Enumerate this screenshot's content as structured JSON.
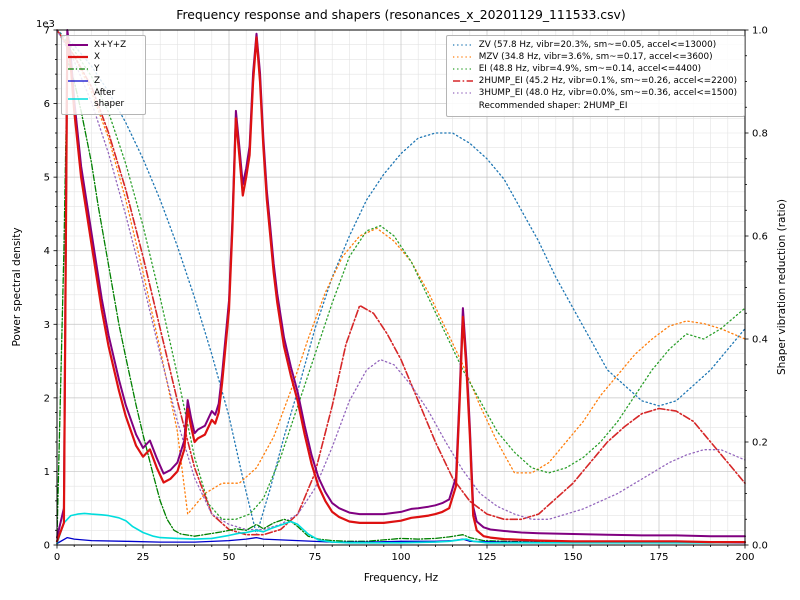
{
  "chart_data": {
    "type": "line",
    "title": "Frequency response and shapers (resonances_x_20201129_111533.csv)",
    "xlabel": "Frequency, Hz",
    "ylabel_left": "Power spectral density",
    "ylabel_right": "Shaper vibration reduction (ratio)",
    "y_left_offset": "1e3",
    "x_range": [
      0,
      200
    ],
    "y_left_range": [
      0,
      7
    ],
    "y_right_range": [
      0,
      1.0
    ],
    "x_ticks": [
      0,
      25,
      50,
      75,
      100,
      125,
      150,
      175,
      200
    ],
    "y_left_ticks": [
      0,
      1,
      2,
      3,
      4,
      5,
      6,
      7
    ],
    "y_right_ticks": [
      0,
      0.2,
      0.4,
      0.6,
      0.8,
      1.0
    ],
    "grid": "both",
    "legend_positions": {
      "psd": "upper left",
      "shapers": "upper right"
    },
    "colors": {
      "grid_major": "#c4c4c4",
      "grid_minor": "#e3e3e3",
      "frame": "#000000"
    },
    "recommended_note": "Recommended shaper: 2HUMP_EI",
    "psd_series": [
      {
        "name": "x-y-z",
        "label": "X+Y+Z",
        "color": "#800080",
        "dash": "solid",
        "width": 2,
        "x": [
          0,
          2,
          3,
          4,
          5,
          7,
          10,
          13,
          15,
          18,
          20,
          23,
          25,
          27,
          29,
          31,
          33,
          35,
          37,
          38,
          39,
          40,
          41,
          43,
          45,
          46,
          47,
          48,
          50,
          51,
          52,
          53,
          54,
          55,
          56,
          57,
          58,
          59,
          60,
          61,
          62,
          63,
          64,
          65,
          66,
          68,
          70,
          72,
          74,
          76,
          78,
          80,
          82,
          85,
          88,
          90,
          95,
          100,
          103,
          105,
          108,
          110,
          112,
          114,
          116,
          117,
          118,
          119,
          120,
          121,
          122,
          124,
          126,
          130,
          135,
          140,
          150,
          160,
          170,
          180,
          190,
          200
        ],
        "y": [
          0.1,
          0.5,
          7.0,
          6.65,
          6.05,
          5.15,
          4.25,
          3.35,
          2.85,
          2.25,
          1.9,
          1.5,
          1.32,
          1.42,
          1.18,
          0.97,
          1.02,
          1.12,
          1.42,
          1.97,
          1.72,
          1.52,
          1.57,
          1.62,
          1.82,
          1.77,
          1.92,
          2.32,
          3.32,
          4.42,
          5.9,
          5.42,
          4.9,
          5.12,
          5.42,
          6.42,
          6.95,
          6.42,
          5.52,
          4.82,
          4.32,
          3.82,
          3.42,
          3.12,
          2.82,
          2.42,
          2.07,
          1.62,
          1.22,
          0.92,
          0.72,
          0.57,
          0.5,
          0.44,
          0.42,
          0.42,
          0.42,
          0.45,
          0.49,
          0.5,
          0.52,
          0.54,
          0.57,
          0.62,
          0.92,
          2.02,
          3.22,
          2.52,
          1.62,
          0.52,
          0.32,
          0.24,
          0.21,
          0.19,
          0.17,
          0.16,
          0.15,
          0.14,
          0.13,
          0.13,
          0.12,
          0.12
        ]
      },
      {
        "name": "x",
        "label": "X",
        "color": "#dd1111",
        "dash": "solid",
        "width": 2.2,
        "x": [
          0,
          2,
          3,
          4,
          5,
          7,
          10,
          13,
          15,
          18,
          20,
          23,
          25,
          27,
          29,
          31,
          33,
          35,
          37,
          38,
          39,
          40,
          41,
          43,
          45,
          46,
          47,
          48,
          50,
          51,
          52,
          53,
          54,
          55,
          56,
          57,
          58,
          59,
          60,
          61,
          62,
          63,
          64,
          65,
          66,
          68,
          70,
          72,
          74,
          76,
          78,
          80,
          82,
          85,
          88,
          90,
          95,
          100,
          103,
          105,
          108,
          110,
          112,
          114,
          116,
          117,
          118,
          119,
          120,
          121,
          122,
          124,
          126,
          130,
          135,
          140,
          150,
          160,
          170,
          180,
          190,
          200
        ],
        "y": [
          0.05,
          0.3,
          6.9,
          6.5,
          5.9,
          5.0,
          4.1,
          3.2,
          2.7,
          2.1,
          1.75,
          1.35,
          1.2,
          1.3,
          1.05,
          0.85,
          0.9,
          1.0,
          1.3,
          1.85,
          1.6,
          1.4,
          1.45,
          1.5,
          1.7,
          1.65,
          1.8,
          2.2,
          3.2,
          4.3,
          5.8,
          5.3,
          4.75,
          5.0,
          5.3,
          6.3,
          6.9,
          6.3,
          5.4,
          4.7,
          4.2,
          3.7,
          3.3,
          3.0,
          2.7,
          2.3,
          1.95,
          1.5,
          1.1,
          0.8,
          0.6,
          0.45,
          0.38,
          0.32,
          0.3,
          0.3,
          0.3,
          0.33,
          0.37,
          0.38,
          0.4,
          0.42,
          0.45,
          0.5,
          0.8,
          1.9,
          3.1,
          2.4,
          1.5,
          0.4,
          0.2,
          0.12,
          0.1,
          0.08,
          0.07,
          0.06,
          0.05,
          0.05,
          0.05,
          0.05,
          0.04,
          0.04
        ]
      },
      {
        "name": "y",
        "label": "Y",
        "color": "#008000",
        "dash": "dashdot",
        "width": 1.3,
        "x": [
          0,
          2,
          3,
          5,
          7,
          10,
          12,
          15,
          18,
          20,
          23,
          25,
          28,
          30,
          32,
          34,
          36,
          40,
          44,
          48,
          52,
          55,
          58,
          60,
          63,
          66,
          68,
          70,
          73,
          76,
          80,
          85,
          90,
          95,
          100,
          105,
          110,
          114,
          118,
          120,
          124,
          130,
          140,
          150,
          160,
          170,
          180,
          190,
          200
        ],
        "y": [
          0.1,
          4.0,
          6.6,
          6.3,
          5.9,
          5.2,
          4.6,
          3.8,
          3.0,
          2.55,
          1.9,
          1.5,
          0.95,
          0.6,
          0.35,
          0.2,
          0.15,
          0.12,
          0.15,
          0.18,
          0.22,
          0.2,
          0.28,
          0.22,
          0.3,
          0.35,
          0.32,
          0.25,
          0.12,
          0.08,
          0.06,
          0.05,
          0.05,
          0.07,
          0.09,
          0.08,
          0.09,
          0.11,
          0.14,
          0.1,
          0.06,
          0.05,
          0.04,
          0.04,
          0.04,
          0.04,
          0.04,
          0.04,
          0.04
        ]
      },
      {
        "name": "z",
        "label": "Z",
        "color": "#0000cc",
        "dash": "solid",
        "width": 1.3,
        "x": [
          0,
          3,
          5,
          10,
          20,
          30,
          40,
          50,
          55,
          58,
          60,
          70,
          80,
          90,
          100,
          110,
          115,
          118,
          120,
          130,
          150,
          170,
          200
        ],
        "y": [
          0.02,
          0.1,
          0.08,
          0.06,
          0.05,
          0.04,
          0.04,
          0.06,
          0.08,
          0.1,
          0.08,
          0.06,
          0.04,
          0.04,
          0.05,
          0.05,
          0.06,
          0.08,
          0.05,
          0.04,
          0.03,
          0.03,
          0.03
        ]
      },
      {
        "name": "after-shaper",
        "label": "After shaper",
        "color": "#00dddd",
        "dash": "solid",
        "width": 1.6,
        "x": [
          0,
          2,
          4,
          6,
          8,
          10,
          13,
          15,
          18,
          20,
          22,
          25,
          28,
          30,
          35,
          40,
          45,
          50,
          53,
          55,
          58,
          60,
          62,
          65,
          68,
          70,
          73,
          76,
          80,
          85,
          90,
          100,
          110,
          114,
          117,
          119,
          121,
          125,
          130,
          140,
          150,
          160,
          170,
          180,
          190,
          200
        ],
        "y": [
          0.02,
          0.3,
          0.4,
          0.42,
          0.43,
          0.42,
          0.41,
          0.4,
          0.37,
          0.33,
          0.25,
          0.17,
          0.12,
          0.1,
          0.09,
          0.08,
          0.09,
          0.13,
          0.16,
          0.17,
          0.2,
          0.18,
          0.22,
          0.27,
          0.32,
          0.28,
          0.15,
          0.07,
          0.04,
          0.03,
          0.03,
          0.03,
          0.04,
          0.05,
          0.07,
          0.08,
          0.05,
          0.03,
          0.03,
          0.03,
          0.03,
          0.03,
          0.03,
          0.03,
          0.03,
          0.04
        ]
      }
    ],
    "shaper_series": [
      {
        "name": "zv",
        "label": "ZV (57.8 Hz, vibr=20.3%, sm~=0.05, accel<=13000)",
        "color": "#1f77b4",
        "dash": "dot",
        "width": 1.3,
        "x": [
          0,
          5,
          10,
          15,
          20,
          25,
          30,
          35,
          40,
          45,
          50,
          54,
          58,
          62,
          66,
          70,
          75,
          80,
          85,
          90,
          95,
          100,
          105,
          110,
          115,
          120,
          125,
          130,
          135,
          140,
          145,
          150,
          155,
          160,
          165,
          170,
          175,
          180,
          185,
          190,
          195,
          200
        ],
        "y": [
          1.0,
          0.97,
          0.93,
          0.88,
          0.82,
          0.75,
          0.67,
          0.58,
          0.48,
          0.37,
          0.25,
          0.13,
          0.02,
          0.11,
          0.21,
          0.3,
          0.42,
          0.52,
          0.6,
          0.67,
          0.72,
          0.76,
          0.79,
          0.8,
          0.8,
          0.78,
          0.75,
          0.71,
          0.65,
          0.59,
          0.52,
          0.46,
          0.4,
          0.34,
          0.31,
          0.28,
          0.27,
          0.28,
          0.31,
          0.34,
          0.38,
          0.42
        ]
      },
      {
        "name": "mzv",
        "label": "MZV (34.8 Hz, vibr=3.6%, sm~=0.17, accel<=3600)",
        "color": "#ff7f0e",
        "dash": "dot",
        "width": 1.3,
        "x": [
          0,
          5,
          10,
          15,
          20,
          25,
          30,
          35,
          38,
          43,
          48,
          53,
          58,
          63,
          68,
          73,
          78,
          83,
          88,
          93,
          98,
          103,
          108,
          113,
          118,
          123,
          128,
          133,
          138,
          143,
          148,
          153,
          158,
          163,
          168,
          173,
          178,
          183,
          188,
          193,
          200
        ],
        "y": [
          1.0,
          0.95,
          0.88,
          0.79,
          0.67,
          0.53,
          0.38,
          0.22,
          0.06,
          0.1,
          0.12,
          0.12,
          0.15,
          0.21,
          0.3,
          0.4,
          0.49,
          0.56,
          0.6,
          0.615,
          0.59,
          0.55,
          0.49,
          0.42,
          0.35,
          0.27,
          0.2,
          0.14,
          0.14,
          0.16,
          0.2,
          0.24,
          0.29,
          0.33,
          0.37,
          0.4,
          0.425,
          0.435,
          0.43,
          0.42,
          0.4
        ]
      },
      {
        "name": "ei",
        "label": "EI (48.8 Hz, vibr=4.9%, sm~=0.14, accel<=4400)",
        "color": "#2ca02c",
        "dash": "dot",
        "width": 1.3,
        "x": [
          0,
          5,
          10,
          15,
          20,
          25,
          30,
          35,
          40,
          44,
          48,
          52,
          56,
          60,
          65,
          70,
          75,
          80,
          85,
          90,
          94,
          98,
          103,
          108,
          113,
          118,
          123,
          128,
          133,
          138,
          143,
          148,
          153,
          158,
          163,
          168,
          173,
          178,
          183,
          188,
          193,
          200
        ],
        "y": [
          1.0,
          0.96,
          0.91,
          0.84,
          0.74,
          0.62,
          0.48,
          0.33,
          0.17,
          0.08,
          0.05,
          0.05,
          0.06,
          0.09,
          0.17,
          0.27,
          0.37,
          0.47,
          0.56,
          0.61,
          0.62,
          0.6,
          0.55,
          0.48,
          0.41,
          0.34,
          0.28,
          0.22,
          0.18,
          0.15,
          0.14,
          0.15,
          0.17,
          0.2,
          0.24,
          0.29,
          0.34,
          0.38,
          0.41,
          0.4,
          0.42,
          0.46
        ]
      },
      {
        "name": "2hump-ei",
        "label": "2HUMP_EI (45.2 Hz, vibr=0.1%, sm~=0.26, accel<=2200)",
        "color": "#d62728",
        "dash": "dashdot",
        "width": 1.6,
        "x": [
          0,
          5,
          10,
          15,
          20,
          25,
          30,
          35,
          40,
          45,
          50,
          55,
          60,
          65,
          70,
          75,
          80,
          84,
          88,
          92,
          96,
          100,
          105,
          110,
          115,
          120,
          125,
          130,
          135,
          140,
          145,
          150,
          155,
          160,
          165,
          170,
          175,
          180,
          185,
          190,
          195,
          200
        ],
        "y": [
          1.0,
          0.95,
          0.89,
          0.8,
          0.69,
          0.56,
          0.42,
          0.28,
          0.15,
          0.06,
          0.03,
          0.02,
          0.02,
          0.03,
          0.06,
          0.14,
          0.27,
          0.39,
          0.465,
          0.45,
          0.41,
          0.36,
          0.28,
          0.2,
          0.13,
          0.085,
          0.06,
          0.05,
          0.05,
          0.06,
          0.09,
          0.12,
          0.16,
          0.2,
          0.23,
          0.255,
          0.265,
          0.26,
          0.24,
          0.2,
          0.16,
          0.12
        ]
      },
      {
        "name": "3hump-ei",
        "label": "3HUMP_EI (48.0 Hz, vibr=0.0%, sm~=0.36, accel<=1500)",
        "color": "#9467bd",
        "dash": "dot",
        "width": 1.3,
        "x": [
          0,
          5,
          10,
          15,
          20,
          25,
          30,
          35,
          40,
          45,
          50,
          55,
          60,
          65,
          70,
          75,
          80,
          85,
          90,
          94,
          98,
          103,
          108,
          113,
          118,
          123,
          128,
          133,
          138,
          143,
          148,
          153,
          158,
          163,
          168,
          173,
          178,
          183,
          188,
          193,
          200
        ],
        "y": [
          1.0,
          0.94,
          0.86,
          0.76,
          0.64,
          0.51,
          0.37,
          0.24,
          0.13,
          0.06,
          0.04,
          0.03,
          0.03,
          0.04,
          0.06,
          0.11,
          0.19,
          0.28,
          0.34,
          0.36,
          0.35,
          0.31,
          0.26,
          0.2,
          0.145,
          0.1,
          0.075,
          0.06,
          0.05,
          0.05,
          0.06,
          0.07,
          0.085,
          0.1,
          0.12,
          0.14,
          0.16,
          0.175,
          0.185,
          0.185,
          0.165
        ]
      }
    ]
  }
}
